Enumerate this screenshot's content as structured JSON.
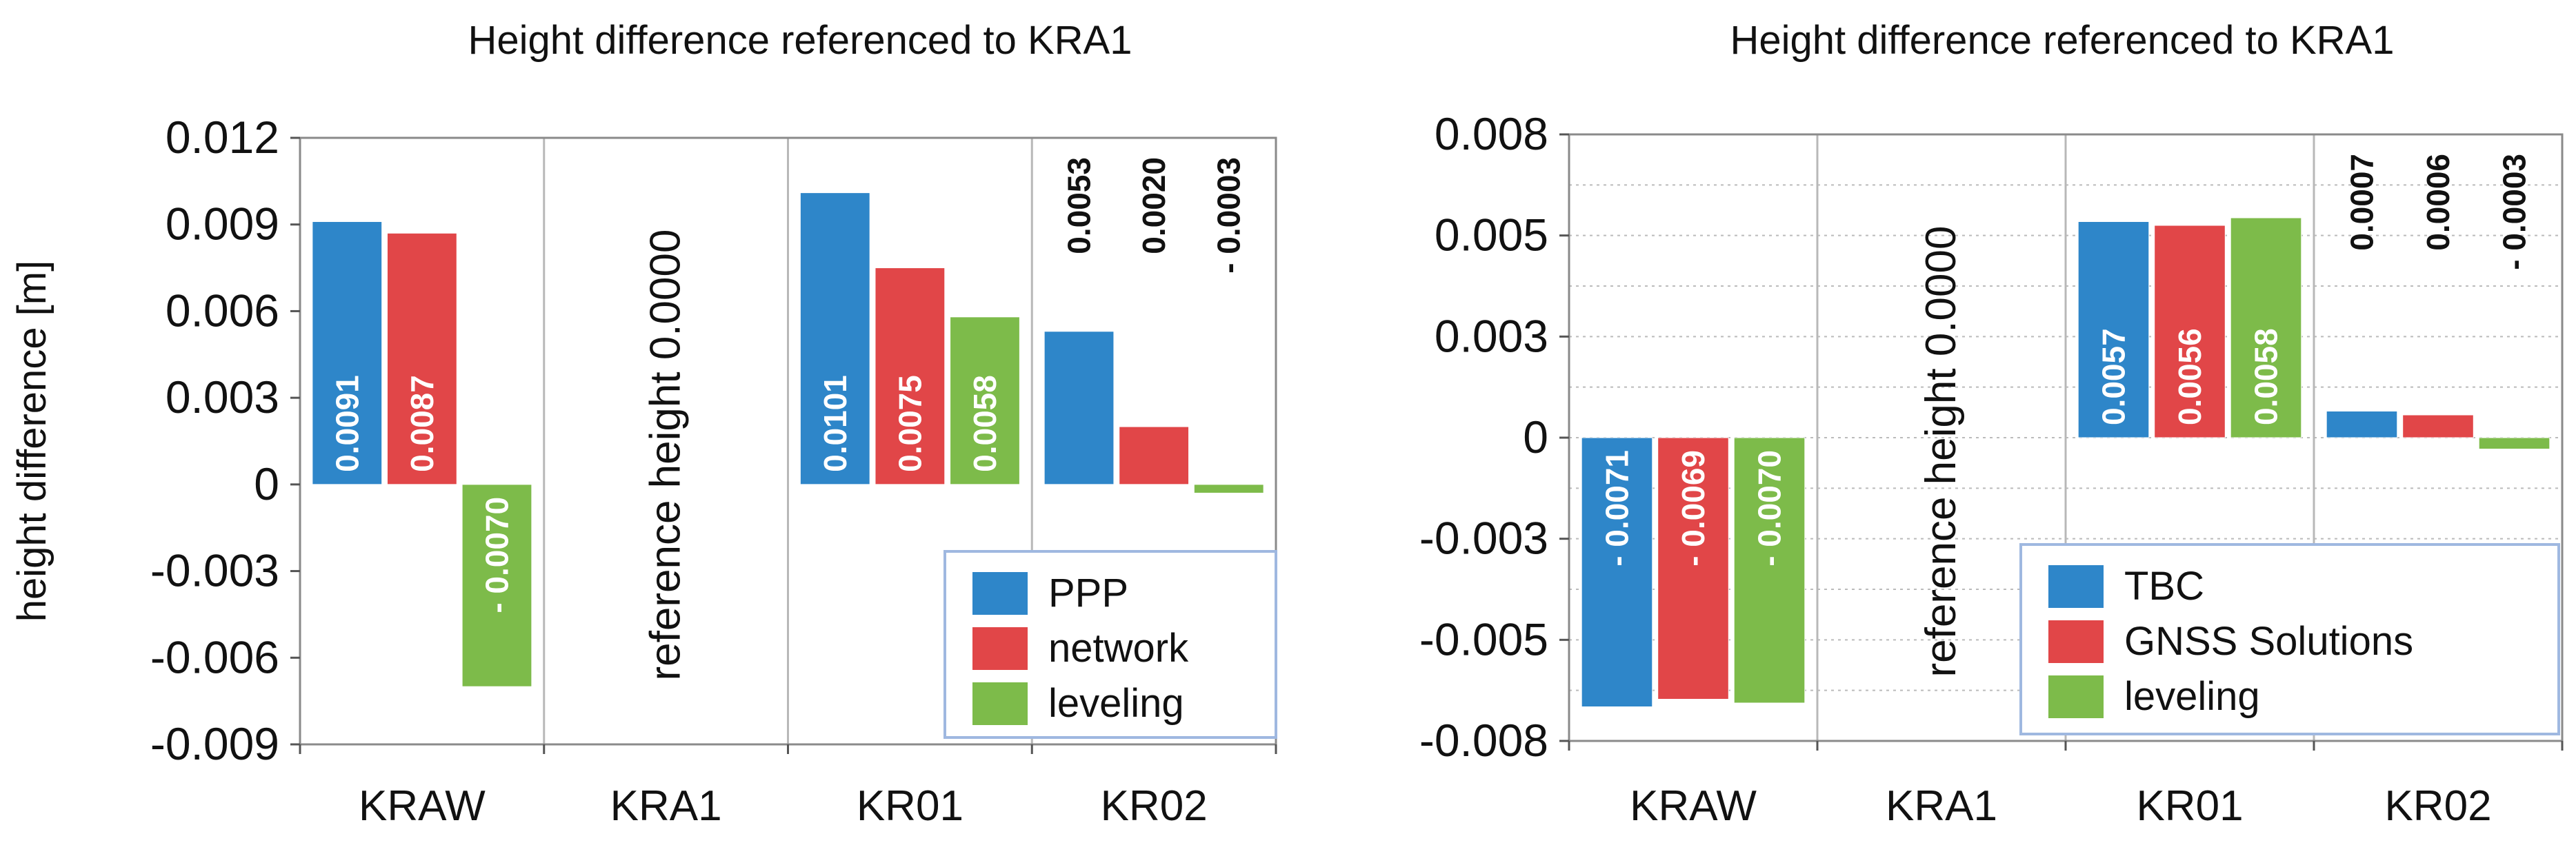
{
  "chart_data": [
    {
      "type": "bar",
      "title": "Height difference referenced to KRA1",
      "ylabel": "height difference [m]",
      "xlabel": "",
      "ylim": [
        -0.009,
        0.012
      ],
      "yticks": [
        "0.012",
        "0.009",
        "0.006",
        "0.003",
        "0",
        "-0.003",
        "-0.006",
        "-0.009"
      ],
      "categories": [
        "KRAW",
        "KRA1",
        "KR01",
        "KR02"
      ],
      "reference_category": "KRA1",
      "reference_text": "reference height 0.0000",
      "series": [
        {
          "name": "PPP",
          "color": "#2e86c9",
          "values": [
            0.0091,
            0,
            0.0101,
            0.0053
          ],
          "labels": [
            "0.0091",
            "",
            "0.0101",
            "0.0053"
          ]
        },
        {
          "name": "network",
          "color": "#e14648",
          "values": [
            0.0087,
            0,
            0.0075,
            0.002
          ],
          "labels": [
            "0.0087",
            "",
            "0.0075",
            "0.0020"
          ]
        },
        {
          "name": "leveling",
          "color": "#7dbb4a",
          "values": [
            -0.007,
            0,
            0.0058,
            -0.0003
          ],
          "labels": [
            "- 0.0070",
            "",
            "0.0058",
            "- 0.0003"
          ]
        }
      ],
      "grid": "vertical",
      "legend": "bottom-right"
    },
    {
      "type": "bar",
      "title": "Height difference referenced to KRA1",
      "ylabel": "",
      "xlabel": "",
      "ylim": [
        -0.008,
        0.008
      ],
      "yticks": [
        "0.008",
        "0.005",
        "0.003",
        "0",
        "-0.003",
        "-0.005",
        "-0.008"
      ],
      "categories": [
        "KRAW",
        "KRA1",
        "KR01",
        "KR02"
      ],
      "reference_category": "KRA1",
      "reference_text": "reference height 0.0000",
      "series": [
        {
          "name": "TBC",
          "color": "#2e86c9",
          "values": [
            -0.0071,
            0,
            0.0057,
            0.0007
          ],
          "labels": [
            "- 0.0071",
            "",
            "0.0057",
            "0.0007"
          ]
        },
        {
          "name": "GNSS Solutions",
          "color": "#e14648",
          "values": [
            -0.0069,
            0,
            0.0056,
            0.0006
          ],
          "labels": [
            "- 0.0069",
            "",
            "0.0056",
            "0.0006"
          ]
        },
        {
          "name": "leveling",
          "color": "#7dbb4a",
          "values": [
            -0.007,
            0,
            0.0058,
            -0.0003
          ],
          "labels": [
            "- 0.0070",
            "",
            "0.0058",
            "- 0.0003"
          ]
        }
      ],
      "grid": "both",
      "legend": "bottom-right"
    }
  ]
}
